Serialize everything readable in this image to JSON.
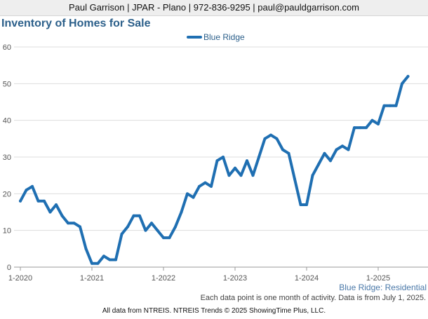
{
  "header": {
    "contact_text": "Paul Garrison | JPAR - Plano | 972-836-9295 | paul@pauldgarrison.com"
  },
  "series_label": "Blue Ridge: Residential",
  "note": "Each data point is one month of activity. Data is from July 1, 2025.",
  "footer": "All data from NTREIS. NTREIS Trends © 2025 ShowingTime Plus, LLC.",
  "colors": {
    "series_line": "#1f6fb2",
    "grid": "#dddddd",
    "title": "#2b5f8a"
  },
  "chart_data": {
    "type": "line",
    "title": "Inventory of Homes for Sale",
    "xlabel": "",
    "ylabel": "",
    "ylim": [
      0,
      60
    ],
    "yticks": [
      0,
      10,
      20,
      30,
      40,
      50,
      60
    ],
    "xtick_labels": [
      "1-2020",
      "1-2021",
      "1-2022",
      "1-2023",
      "1-2024",
      "1-2025"
    ],
    "grid": true,
    "legend": "top-center",
    "x_start": "2020-01",
    "x_end": "2025-06",
    "series": [
      {
        "name": "Blue Ridge",
        "values": [
          18,
          21,
          22,
          18,
          18,
          15,
          17,
          14,
          12,
          12,
          11,
          5,
          1,
          1,
          3,
          2,
          2,
          9,
          11,
          14,
          14,
          10,
          12,
          10,
          8,
          8,
          11,
          15,
          20,
          19,
          22,
          23,
          22,
          29,
          30,
          25,
          27,
          25,
          29,
          25,
          30,
          35,
          36,
          35,
          32,
          31,
          24,
          17,
          17,
          25,
          28,
          31,
          29,
          32,
          33,
          32,
          38,
          38,
          38,
          40,
          39,
          44,
          44,
          44,
          50,
          52
        ]
      }
    ]
  }
}
